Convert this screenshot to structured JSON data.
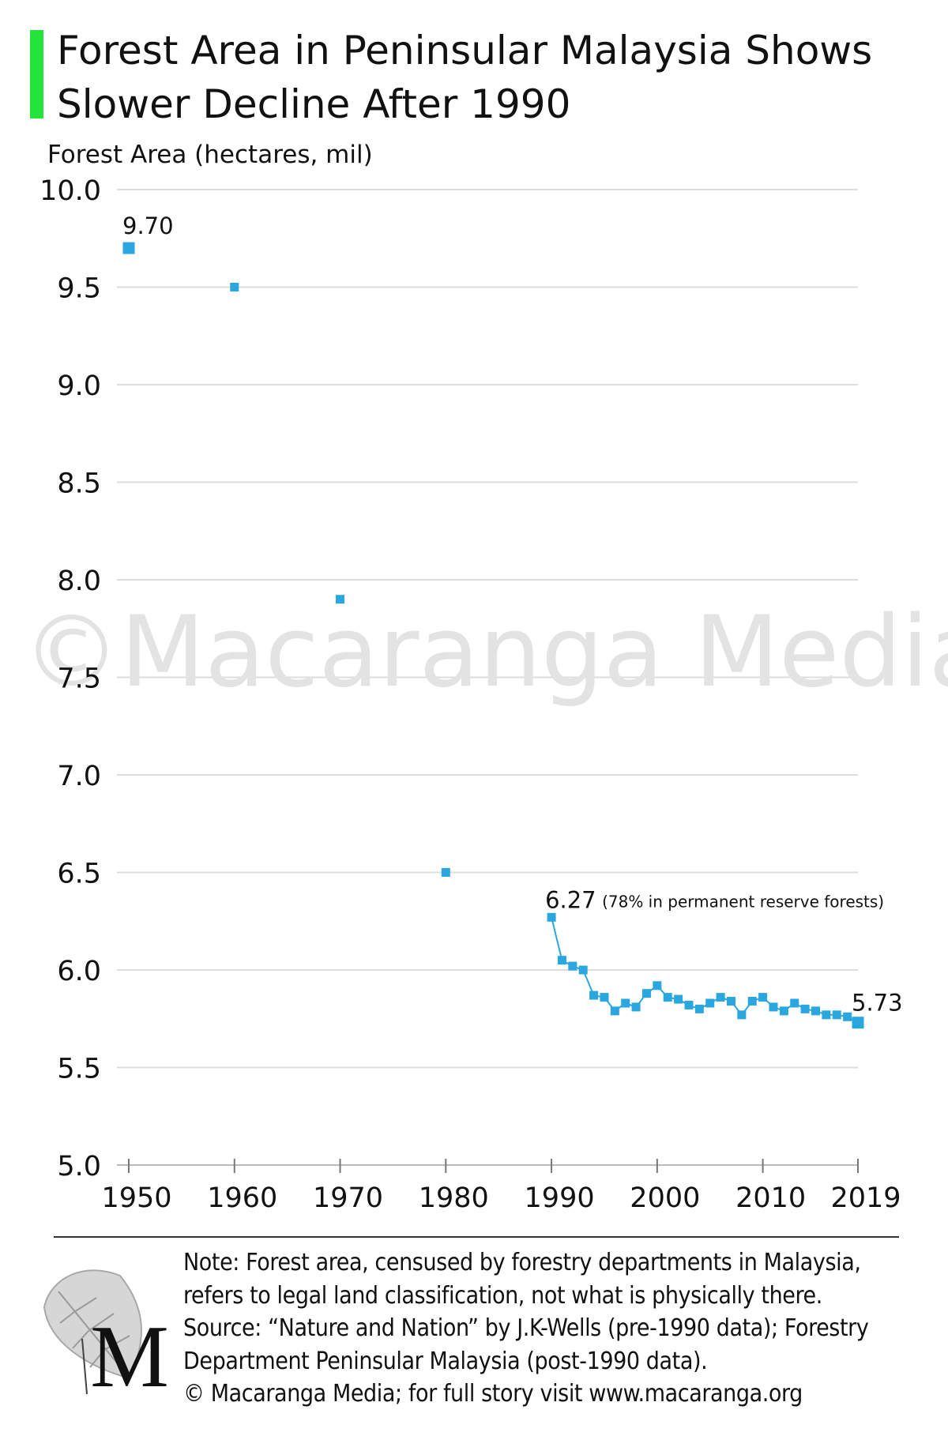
{
  "colors": {
    "accent": "#22e43a",
    "series": "#29a7de",
    "grid": "#dddddd"
  },
  "header": {
    "title": "Forest Area in Peninsular Malaysia Shows Slower Decline After 1990",
    "accent_bar_icon": "green-accent-bar-icon"
  },
  "watermark": "©Macaranga Media",
  "chart_data": {
    "type": "line",
    "title": "Forest Area in Peninsular Malaysia Shows Slower Decline After 1990",
    "xlabel": "",
    "ylabel": "Forest Area (hectares, mil)",
    "xlim": [
      1950,
      2019
    ],
    "ylim": [
      5.0,
      10.0
    ],
    "x_ticks": [
      1950,
      1960,
      1970,
      1980,
      1990,
      2000,
      2010,
      2019
    ],
    "y_ticks": [
      "5.0",
      "5.5",
      "6.0",
      "6.5",
      "7.0",
      "7.5",
      "8.0",
      "8.5",
      "9.0",
      "9.5",
      "10.0"
    ],
    "grid": true,
    "legend": "none",
    "series": [
      {
        "name": "",
        "points": [
          {
            "x": 1950,
            "y": 9.7
          },
          {
            "x": 1960,
            "y": 9.5
          },
          {
            "x": 1970,
            "y": 7.9
          },
          {
            "x": 1980,
            "y": 6.5
          },
          {
            "x": 1990,
            "y": 6.27
          },
          {
            "x": 1991,
            "y": 6.05
          },
          {
            "x": 1992,
            "y": 6.02
          },
          {
            "x": 1993,
            "y": 6.0
          },
          {
            "x": 1994,
            "y": 5.87
          },
          {
            "x": 1995,
            "y": 5.86
          },
          {
            "x": 1996,
            "y": 5.79
          },
          {
            "x": 1997,
            "y": 5.83
          },
          {
            "x": 1998,
            "y": 5.81
          },
          {
            "x": 1999,
            "y": 5.88
          },
          {
            "x": 2000,
            "y": 5.92
          },
          {
            "x": 2001,
            "y": 5.86
          },
          {
            "x": 2002,
            "y": 5.85
          },
          {
            "x": 2003,
            "y": 5.82
          },
          {
            "x": 2004,
            "y": 5.8
          },
          {
            "x": 2005,
            "y": 5.83
          },
          {
            "x": 2006,
            "y": 5.86
          },
          {
            "x": 2007,
            "y": 5.84
          },
          {
            "x": 2008,
            "y": 5.77
          },
          {
            "x": 2009,
            "y": 5.84
          },
          {
            "x": 2010,
            "y": 5.86
          },
          {
            "x": 2011,
            "y": 5.81
          },
          {
            "x": 2012,
            "y": 5.79
          },
          {
            "x": 2013,
            "y": 5.83
          },
          {
            "x": 2014,
            "y": 5.8
          },
          {
            "x": 2015,
            "y": 5.79
          },
          {
            "x": 2016,
            "y": 5.77
          },
          {
            "x": 2017,
            "y": 5.77
          },
          {
            "x": 2018,
            "y": 5.76
          },
          {
            "x": 2019,
            "y": 5.73
          }
        ],
        "connected_from": 1990
      }
    ],
    "annotations": [
      {
        "x": 1950,
        "y": 9.7,
        "text": "9.70"
      },
      {
        "x": 1990,
        "y": 6.27,
        "text": "6.27",
        "note": "(78% in permanent reserve forests)"
      },
      {
        "x": 2019,
        "y": 5.73,
        "text": "5.73"
      }
    ]
  },
  "footer": {
    "logo_icon": "macaranga-leaf-logo-icon",
    "logo_letter": "M",
    "note_lines": [
      "Note: Forest area, censused by forestry departments in Malaysia,",
      "refers to legal land classification, not what is physically there.",
      "Source: “Nature and Nation” by J.K-Wells (pre-1990 data); Forestry",
      "Department Peninsular Malaysia (post-1990 data).",
      "© Macaranga Media; for full story visit www.macaranga.org"
    ]
  }
}
